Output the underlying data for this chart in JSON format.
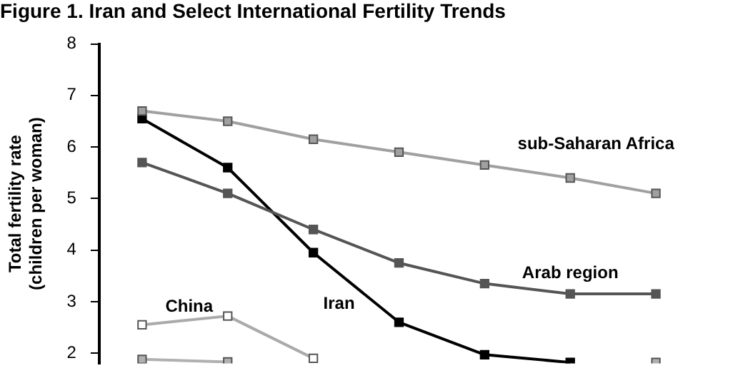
{
  "chart_data": {
    "type": "line",
    "title": "Figure 1. Iran and Select International Fertility Trends",
    "ylabel": "Total fertility rate\n(children per woman)",
    "categories": [
      null,
      null,
      null,
      null,
      null,
      null,
      null
    ],
    "series": [
      {
        "name": "sub-Saharan Africa",
        "color": "#a0a0a0",
        "values": [
          6.7,
          6.5,
          6.15,
          5.9,
          5.65,
          5.4,
          5.1
        ]
      },
      {
        "name": "Arab region",
        "color": "#555555",
        "values": [
          5.7,
          5.1,
          4.4,
          3.75,
          3.35,
          3.15,
          3.15
        ]
      },
      {
        "name": "Iran",
        "color": "#000000",
        "values": [
          6.55,
          5.6,
          3.95,
          2.6,
          1.97,
          1.82,
          null
        ]
      },
      {
        "name": "China",
        "color": "#aaaaaa",
        "values": [
          2.55,
          2.72,
          1.9,
          null,
          null,
          null,
          null
        ]
      },
      {
        "color": "#b0b0b0",
        "values": [
          1.88,
          1.83,
          null,
          null,
          null,
          null,
          1.82
        ]
      }
    ],
    "ylim": [
      1.8,
      8
    ],
    "yticks": [
      2,
      3,
      4,
      5,
      6,
      7,
      8
    ],
    "grid": false,
    "legend": false,
    "tick_labels": "y",
    "marker": "square",
    "line_style": "solid"
  }
}
